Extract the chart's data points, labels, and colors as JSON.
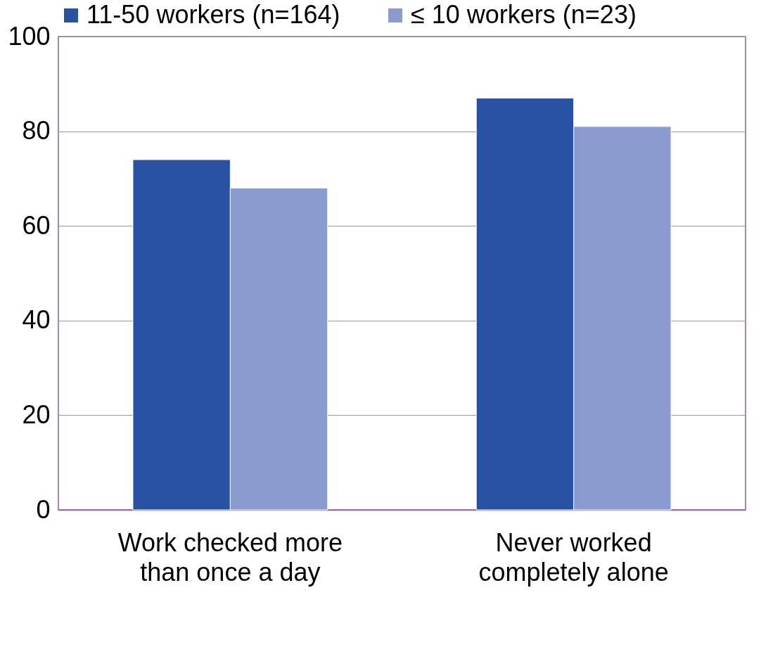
{
  "chart_data": {
    "type": "bar",
    "categories": [
      "Work checked more than once a day",
      "Never worked completely alone"
    ],
    "series": [
      {
        "name": "11-50 workers (n=164)",
        "color": "#2a52a3",
        "values": [
          74,
          87
        ]
      },
      {
        "name": "≤ 10 workers (n=23)",
        "color": "#8b9bcf",
        "values": [
          68,
          81
        ]
      }
    ],
    "ylim": [
      0,
      100
    ],
    "yticks": [
      0,
      20,
      40,
      60,
      80,
      100
    ],
    "grid": "y",
    "legend": "top"
  }
}
